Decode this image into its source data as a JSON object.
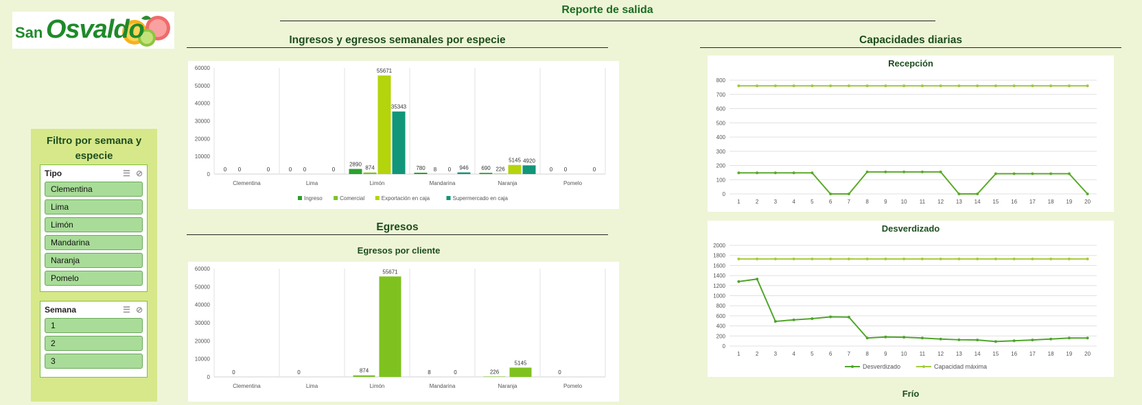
{
  "logo": {
    "word1": "San",
    "word2": "Osvaldo"
  },
  "report_title": "Reporte de salida",
  "sidebar": {
    "filter_title": "Filtro por semana y especie",
    "tipo": {
      "title": "Tipo",
      "items": [
        "Clementina",
        "Lima",
        "Limón",
        "Mandarina",
        "Naranja",
        "Pomelo"
      ]
    },
    "semana": {
      "title": "Semana",
      "items": [
        "1",
        "2",
        "3"
      ]
    }
  },
  "ingresos_section": {
    "title": "Ingresos y egresos semanales por especie"
  },
  "egresos_section": {
    "title": "Egresos",
    "subtitle": "Egresos por cliente"
  },
  "capacidades_section": {
    "title": "Capacidades diarias",
    "recepcion_title": "Recepción",
    "desverdizado_title": "Desverdizado",
    "frio_title": "Frío"
  },
  "chart_data": [
    {
      "id": "ingresos",
      "type": "bar",
      "categories": [
        "Clementina",
        "Lima",
        "Limón",
        "Mandarina",
        "Naranja",
        "Pomelo"
      ],
      "ylim": [
        0,
        60000
      ],
      "yticks": [
        0,
        10000,
        20000,
        30000,
        40000,
        50000,
        60000
      ],
      "legend_position": "bottom",
      "series": [
        {
          "name": "Ingreso",
          "color": "#2aa12f",
          "values": [
            0,
            0,
            2890,
            780,
            690,
            0
          ]
        },
        {
          "name": "Comercial",
          "color": "#7cc22a",
          "values": [
            0,
            0,
            874,
            8,
            226,
            0
          ]
        },
        {
          "name": "Exportación en caja",
          "color": "#b4d40c",
          "values": [
            null,
            null,
            55671,
            0,
            5145,
            null
          ]
        },
        {
          "name": "Supermercado en caja",
          "color": "#11967a",
          "values": [
            0,
            0,
            35343,
            946,
            4920,
            0
          ]
        }
      ]
    },
    {
      "id": "egresos",
      "type": "bar",
      "categories": [
        "Clementina",
        "Lima",
        "Limón",
        "Mandarina",
        "Naranja",
        "Pomelo"
      ],
      "ylim": [
        0,
        60000
      ],
      "yticks": [
        0,
        10000,
        20000,
        30000,
        40000,
        50000,
        60000
      ],
      "series": [
        {
          "color": "#7cc22a",
          "values": [
            0,
            0,
            874,
            8,
            226,
            0
          ]
        },
        {
          "color": "#7fc21f",
          "values": [
            null,
            null,
            55671,
            0,
            5145,
            null
          ]
        }
      ]
    },
    {
      "id": "recepcion",
      "type": "line",
      "x": [
        1,
        2,
        3,
        4,
        5,
        6,
        7,
        8,
        9,
        10,
        11,
        12,
        13,
        14,
        15,
        16,
        17,
        18,
        19,
        20
      ],
      "ylim": [
        0,
        800
      ],
      "yticks": [
        0,
        100,
        200,
        300,
        400,
        500,
        600,
        700,
        800
      ],
      "series": [
        {
          "color": "#5aaa2a",
          "values": [
            148,
            148,
            148,
            148,
            148,
            0,
            0,
            155,
            155,
            155,
            155,
            155,
            0,
            0,
            142,
            142,
            142,
            142,
            142,
            0
          ]
        },
        {
          "color": "#9bc83a",
          "values": [
            760,
            760,
            760,
            760,
            760,
            760,
            760,
            760,
            760,
            760,
            760,
            760,
            760,
            760,
            760,
            760,
            760,
            760,
            760,
            760
          ]
        }
      ]
    },
    {
      "id": "desverdizado",
      "type": "line",
      "x": [
        1,
        2,
        3,
        4,
        5,
        6,
        7,
        8,
        9,
        10,
        11,
        12,
        13,
        14,
        15,
        16,
        17,
        18,
        19,
        20
      ],
      "ylim": [
        0,
        2000
      ],
      "yticks": [
        0,
        200,
        400,
        600,
        800,
        1000,
        1200,
        1400,
        1600,
        1800,
        2000
      ],
      "legend_position": "bottom",
      "series": [
        {
          "name": "Desverdizado",
          "color": "#4ea52a",
          "values": [
            1280,
            1330,
            490,
            520,
            545,
            580,
            575,
            160,
            180,
            175,
            160,
            140,
            125,
            120,
            90,
            105,
            120,
            140,
            160,
            160
          ]
        },
        {
          "name": "Capacidad máxima",
          "color": "#a3cc3a",
          "values": [
            1730,
            1730,
            1730,
            1730,
            1730,
            1730,
            1730,
            1730,
            1730,
            1730,
            1730,
            1730,
            1730,
            1730,
            1730,
            1730,
            1730,
            1730,
            1730,
            1730
          ]
        }
      ]
    }
  ]
}
